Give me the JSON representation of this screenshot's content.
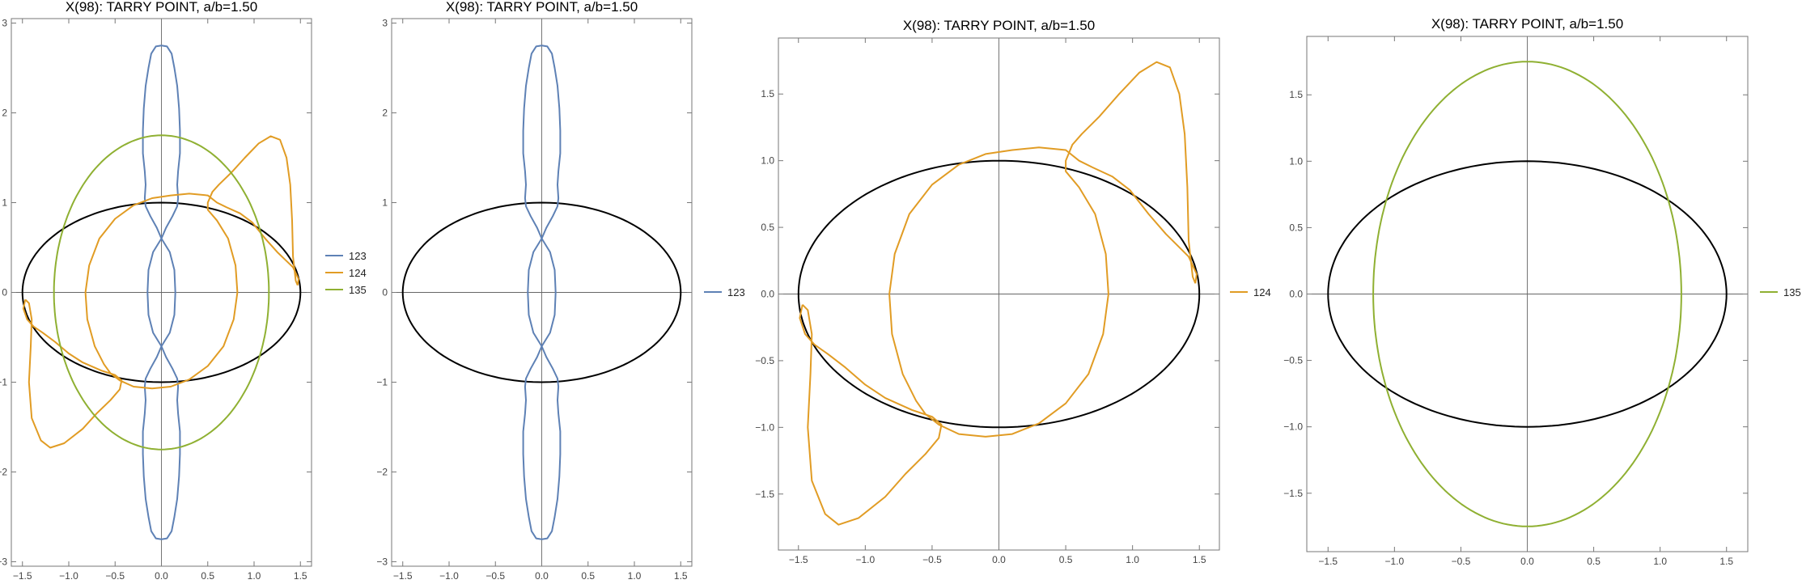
{
  "chart_data": [
    {
      "type": "line",
      "title": "X(98): TARRY POINT, a/b=1.50",
      "xlabel": "",
      "ylabel": "",
      "xlim": [
        -1.62,
        1.62
      ],
      "ylim": [
        -3.05,
        3.05
      ],
      "xticks": [
        "-1.5",
        "-1.0",
        "-0.5",
        "0.0",
        "0.5",
        "1.0",
        "1.5"
      ],
      "yticks": [
        "-3",
        "-2",
        "-1",
        "0",
        "1",
        "2",
        "3"
      ],
      "reference_ellipse": {
        "a": 1.5,
        "b": 1.0,
        "color": "#000000"
      },
      "legend": "right",
      "series": [
        {
          "name": "123",
          "color": "#5e81b5",
          "shape": "c123"
        },
        {
          "name": "124",
          "color": "#e19c24",
          "shape": "c124"
        },
        {
          "name": "135",
          "color": "#8fb032",
          "shape": "c135"
        }
      ]
    },
    {
      "type": "line",
      "title": "X(98): TARRY POINT, a/b=1.50",
      "xlabel": "",
      "ylabel": "",
      "xlim": [
        -1.62,
        1.62
      ],
      "ylim": [
        -3.05,
        3.05
      ],
      "xticks": [
        "-1.5",
        "-1.0",
        "-0.5",
        "0.0",
        "0.5",
        "1.0",
        "1.5"
      ],
      "yticks": [
        "-3",
        "-2",
        "-1",
        "0",
        "1",
        "2",
        "3"
      ],
      "reference_ellipse": {
        "a": 1.5,
        "b": 1.0,
        "color": "#000000"
      },
      "legend": "right",
      "series": [
        {
          "name": "123",
          "color": "#5e81b5",
          "shape": "c123"
        }
      ]
    },
    {
      "type": "line",
      "title": "X(98): TARRY POINT, a/b=1.50",
      "xlabel": "",
      "ylabel": "",
      "xlim": [
        -1.65,
        1.65
      ],
      "ylim": [
        -1.92,
        1.92
      ],
      "xticks": [
        "-1.5",
        "-1.0",
        "-0.5",
        "0.0",
        "0.5",
        "1.0",
        "1.5"
      ],
      "yticks": [
        "-1.5",
        "-1.0",
        "-0.5",
        "0.0",
        "0.5",
        "1.0",
        "1.5"
      ],
      "reference_ellipse": {
        "a": 1.5,
        "b": 1.0,
        "color": "#000000"
      },
      "legend": "right",
      "series": [
        {
          "name": "124",
          "color": "#e19c24",
          "shape": "c124"
        }
      ]
    },
    {
      "type": "line",
      "title": "X(98): TARRY POINT, a/b=1.50",
      "xlabel": "",
      "ylabel": "",
      "xlim": [
        -1.66,
        1.66
      ],
      "ylim": [
        -1.94,
        1.94
      ],
      "xticks": [
        "-1.5",
        "-1.0",
        "-0.5",
        "0.0",
        "0.5",
        "1.0",
        "1.5"
      ],
      "yticks": [
        "-1.5",
        "-1.0",
        "-0.5",
        "0.0",
        "0.5",
        "1.0",
        "1.5"
      ],
      "reference_ellipse": {
        "a": 1.5,
        "b": 1.0,
        "color": "#000000"
      },
      "legend": "right",
      "series": [
        {
          "name": "135",
          "color": "#8fb032",
          "shape": "c135"
        }
      ]
    }
  ],
  "curves": {
    "c123": [
      [
        0.0,
        2.75
      ],
      [
        0.06,
        2.74
      ],
      [
        0.11,
        2.66
      ],
      [
        0.14,
        2.5
      ],
      [
        0.17,
        2.3
      ],
      [
        0.19,
        2.05
      ],
      [
        0.2,
        1.8
      ],
      [
        0.2,
        1.55
      ],
      [
        0.18,
        1.35
      ],
      [
        0.17,
        1.2
      ],
      [
        0.18,
        1.05
      ],
      [
        0.17,
        0.96
      ],
      [
        0.12,
        0.85
      ],
      [
        0.05,
        0.72
      ],
      [
        0.0,
        0.6
      ],
      [
        -0.05,
        0.72
      ],
      [
        -0.12,
        0.85
      ],
      [
        -0.17,
        0.96
      ],
      [
        -0.18,
        1.05
      ],
      [
        -0.17,
        1.2
      ],
      [
        -0.18,
        1.35
      ],
      [
        -0.2,
        1.55
      ],
      [
        -0.2,
        1.8
      ],
      [
        -0.19,
        2.05
      ],
      [
        -0.17,
        2.3
      ],
      [
        -0.14,
        2.5
      ],
      [
        -0.11,
        2.66
      ],
      [
        -0.06,
        2.74
      ],
      [
        0.0,
        2.75
      ],
      null,
      [
        0.0,
        0.6
      ],
      [
        0.09,
        0.45
      ],
      [
        0.14,
        0.25
      ],
      [
        0.15,
        0.0
      ],
      [
        0.14,
        -0.25
      ],
      [
        0.09,
        -0.45
      ],
      [
        0.0,
        -0.6
      ],
      [
        -0.09,
        -0.45
      ],
      [
        -0.14,
        -0.25
      ],
      [
        -0.15,
        0.0
      ],
      [
        -0.14,
        0.25
      ],
      [
        -0.09,
        0.45
      ],
      [
        0.0,
        0.6
      ],
      null,
      [
        0.0,
        -0.6
      ],
      [
        0.05,
        -0.72
      ],
      [
        0.12,
        -0.85
      ],
      [
        0.17,
        -0.96
      ],
      [
        0.18,
        -1.05
      ],
      [
        0.17,
        -1.2
      ],
      [
        0.18,
        -1.35
      ],
      [
        0.2,
        -1.55
      ],
      [
        0.2,
        -1.8
      ],
      [
        0.19,
        -2.05
      ],
      [
        0.17,
        -2.3
      ],
      [
        0.14,
        -2.5
      ],
      [
        0.11,
        -2.66
      ],
      [
        0.06,
        -2.74
      ],
      [
        0.0,
        -2.75
      ],
      [
        -0.06,
        -2.74
      ],
      [
        -0.11,
        -2.66
      ],
      [
        -0.14,
        -2.5
      ],
      [
        -0.17,
        -2.3
      ],
      [
        -0.19,
        -2.05
      ],
      [
        -0.2,
        -1.8
      ],
      [
        -0.2,
        -1.55
      ],
      [
        -0.18,
        -1.35
      ],
      [
        -0.17,
        -1.2
      ],
      [
        -0.18,
        -1.05
      ],
      [
        -0.17,
        -0.96
      ],
      [
        -0.12,
        -0.85
      ],
      [
        -0.05,
        -0.72
      ],
      [
        0.0,
        -0.6
      ]
    ],
    "c124": [
      [
        1.47,
        0.08
      ],
      [
        1.45,
        0.13
      ],
      [
        1.42,
        0.4
      ],
      [
        1.41,
        0.8
      ],
      [
        1.39,
        1.2
      ],
      [
        1.35,
        1.5
      ],
      [
        1.28,
        1.7
      ],
      [
        1.18,
        1.74
      ],
      [
        1.05,
        1.66
      ],
      [
        0.9,
        1.5
      ],
      [
        0.75,
        1.33
      ],
      [
        0.62,
        1.2
      ],
      [
        0.55,
        1.12
      ],
      [
        0.5,
        1.0
      ],
      [
        0.5,
        0.92
      ],
      [
        0.6,
        0.8
      ],
      [
        0.72,
        0.6
      ],
      [
        0.8,
        0.3
      ],
      [
        0.82,
        0.0
      ],
      [
        0.78,
        -0.3
      ],
      [
        0.67,
        -0.6
      ],
      [
        0.5,
        -0.82
      ],
      [
        0.3,
        -0.97
      ],
      [
        0.1,
        -1.05
      ],
      [
        -0.1,
        -1.07
      ],
      [
        -0.3,
        -1.05
      ],
      [
        -0.45,
        -0.98
      ],
      [
        -0.55,
        -0.9
      ],
      [
        -0.62,
        -0.8
      ],
      [
        -0.72,
        -0.6
      ],
      [
        -0.8,
        -0.3
      ],
      [
        -0.82,
        0.0
      ],
      [
        -0.78,
        0.3
      ],
      [
        -0.67,
        0.6
      ],
      [
        -0.5,
        0.82
      ],
      [
        -0.3,
        0.97
      ],
      [
        -0.1,
        1.05
      ],
      [
        0.1,
        1.08
      ],
      [
        0.3,
        1.1
      ],
      [
        0.5,
        1.08
      ],
      [
        0.6,
        1.0
      ],
      [
        0.7,
        0.95
      ],
      [
        0.85,
        0.88
      ],
      [
        0.98,
        0.78
      ],
      [
        1.12,
        0.6
      ],
      [
        1.25,
        0.45
      ],
      [
        1.35,
        0.35
      ],
      [
        1.42,
        0.28
      ],
      [
        1.48,
        0.15
      ],
      [
        1.47,
        0.08
      ],
      null,
      [
        -1.47,
        -0.08
      ],
      [
        -1.43,
        -0.12
      ],
      [
        -1.4,
        -0.3
      ],
      [
        -1.41,
        -0.6
      ],
      [
        -1.43,
        -1.0
      ],
      [
        -1.4,
        -1.4
      ],
      [
        -1.3,
        -1.65
      ],
      [
        -1.2,
        -1.73
      ],
      [
        -1.05,
        -1.68
      ],
      [
        -0.85,
        -1.52
      ],
      [
        -0.7,
        -1.35
      ],
      [
        -0.55,
        -1.2
      ],
      [
        -0.45,
        -1.08
      ],
      [
        -0.43,
        -0.98
      ],
      [
        -0.5,
        -0.92
      ],
      [
        -0.65,
        -0.87
      ],
      [
        -0.85,
        -0.78
      ],
      [
        -1.0,
        -0.68
      ],
      [
        -1.15,
        -0.55
      ],
      [
        -1.28,
        -0.45
      ],
      [
        -1.38,
        -0.38
      ],
      [
        -1.45,
        -0.3
      ],
      [
        -1.49,
        -0.18
      ],
      [
        -1.47,
        -0.08
      ]
    ],
    "c135": "ellipse:1.16:1.75",
    "ellipse": "ellipse:1.5:1.0"
  }
}
